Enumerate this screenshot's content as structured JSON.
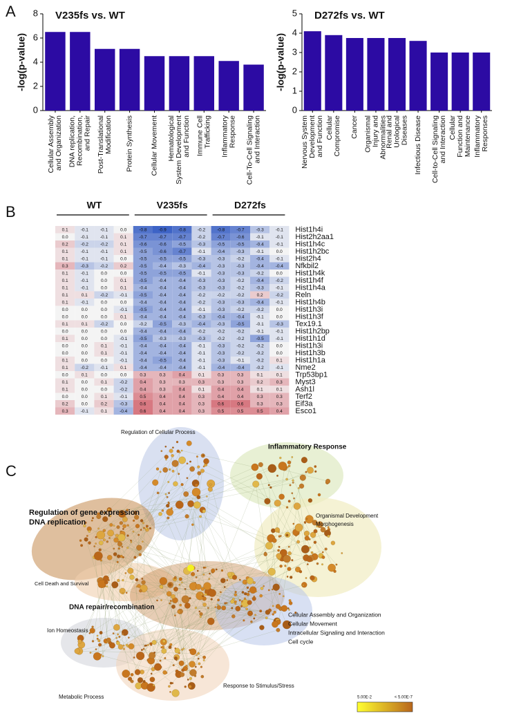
{
  "panel_labels": [
    "A",
    "B",
    "C"
  ],
  "chart_data": [
    {
      "type": "bar",
      "title": "V235fs vs. WT",
      "ylabel": "-log(p-value)",
      "color": "#2c0ba3",
      "categories": [
        [
          "Cellular Assembly",
          "and Organization"
        ],
        [
          "DNA replication,",
          "Recombination,",
          "and Repair"
        ],
        [
          "Post-Translational",
          "Modification"
        ],
        [
          "Protein Synthesis"
        ],
        [
          "Cellular Movement"
        ],
        [
          "Hematological",
          "System Development",
          "and Function"
        ],
        [
          "Immune Cell",
          "Trafficking"
        ],
        [
          "Inflammatory",
          "Response"
        ],
        [
          "Cell-To-Cell Signaling",
          "and Interaction"
        ]
      ],
      "values": [
        6.5,
        6.5,
        5.1,
        5.1,
        4.5,
        4.5,
        4.5,
        4.1,
        3.8
      ],
      "ylim": [
        0,
        8
      ],
      "yticks": [
        0,
        2,
        4,
        6,
        8
      ]
    },
    {
      "type": "bar",
      "title": "D272fs vs. WT",
      "ylabel": "-log(p-value)",
      "color": "#2c0ba3",
      "categories": [
        [
          "Nervous System",
          "Development",
          "and Function"
        ],
        [
          "Cellular",
          "Compromise"
        ],
        [
          "Cancer"
        ],
        [
          "Organismal",
          "Injury and",
          "Abnormalities"
        ],
        [
          "Renal and",
          "Urological",
          "Diseases"
        ],
        [
          "Infectious Disease"
        ],
        [
          "Cell-to-Cell Signaling",
          "and Interaction"
        ],
        [
          "Cellular",
          "Function and",
          "Maintenance"
        ],
        [
          "Inflammatory",
          "Responses"
        ]
      ],
      "values": [
        4.1,
        3.9,
        3.75,
        3.75,
        3.75,
        3.6,
        3.0,
        3.0,
        3.0
      ],
      "ylim": [
        0,
        5
      ],
      "yticks": [
        0,
        1,
        2,
        3,
        4,
        5
      ]
    },
    {
      "type": "heatmap",
      "groups": [
        "WT",
        "V235fs",
        "D272fs"
      ],
      "colors": [
        "#3d63c6",
        "#f4f4f4",
        "#c83a48"
      ],
      "rows": [
        "Hist1h4i",
        "Hist2h2aa1",
        "Hist1h4c",
        "Hist1h2bc",
        "Hist2h4",
        "Nfkbil2",
        "Hist1h4k",
        "Hist1h4f",
        "Hist1h4a",
        "Reln",
        "Hist1h4b",
        "Hist1h3i",
        "Hist1h3f",
        "Tex19.1",
        "Hist1h2bp",
        "Hist1h1d",
        "Hist1h3i",
        "Hist1h3b",
        "Hist1h1a",
        "Nme2",
        "Trp53bp1",
        "Myst3",
        "Ash1l",
        "Terf2",
        "Eif3a",
        "Esco1"
      ],
      "values": [
        [
          0.1,
          -0.1,
          -0.1,
          0,
          -0.8,
          -0.9,
          -0.8,
          -0.2,
          -0.8,
          -0.7,
          -0.3,
          -0.1
        ],
        [
          0,
          -0.1,
          -0.1,
          0.1,
          -0.7,
          -0.7,
          -0.7,
          -0.2,
          -0.7,
          -0.6,
          -0.1,
          -0.1
        ],
        [
          0.2,
          -0.2,
          -0.2,
          0.1,
          -0.6,
          -0.6,
          -0.5,
          -0.3,
          -0.5,
          -0.5,
          -0.4,
          -0.1
        ],
        [
          0.1,
          -0.1,
          -0.1,
          0.1,
          -0.5,
          -0.6,
          -0.7,
          -0.1,
          -0.4,
          -0.3,
          -0.1,
          0
        ],
        [
          0.1,
          -0.1,
          -0.1,
          0,
          -0.5,
          -0.5,
          -0.5,
          -0.3,
          -0.3,
          -0.2,
          -0.4,
          -0.1
        ],
        [
          0.3,
          -0.3,
          -0.2,
          0.2,
          -0.5,
          -0.4,
          -0.3,
          -0.4,
          -0.3,
          -0.3,
          -0.4,
          -0.4
        ],
        [
          0.1,
          -0.1,
          0,
          0,
          -0.5,
          -0.5,
          -0.5,
          -0.1,
          -0.3,
          -0.3,
          -0.2,
          0
        ],
        [
          0.1,
          -0.1,
          0,
          0.1,
          -0.5,
          -0.4,
          -0.4,
          -0.3,
          -0.3,
          -0.2,
          -0.4,
          -0.2
        ],
        [
          0.1,
          -0.1,
          0,
          0.1,
          -0.4,
          -0.4,
          -0.4,
          -0.3,
          -0.3,
          -0.2,
          -0.3,
          -0.1
        ],
        [
          0.1,
          0.1,
          -0.2,
          -0.1,
          -0.5,
          -0.4,
          -0.4,
          -0.2,
          -0.2,
          -0.2,
          0.2,
          -0.2
        ],
        [
          0.1,
          -0.1,
          0,
          0,
          -0.4,
          -0.4,
          -0.4,
          -0.2,
          -0.3,
          -0.3,
          -0.4,
          -0.1
        ],
        [
          0,
          0,
          0,
          -0.1,
          -0.5,
          -0.4,
          -0.4,
          -0.1,
          -0.3,
          -0.2,
          -0.2,
          0
        ],
        [
          0,
          0,
          0,
          0.1,
          -0.4,
          -0.4,
          -0.4,
          -0.3,
          -0.4,
          -0.4,
          -0.1,
          0
        ],
        [
          0.1,
          0.1,
          -0.2,
          0,
          -0.2,
          -0.5,
          -0.3,
          -0.4,
          -0.3,
          -0.5,
          -0.1,
          -0.3
        ],
        [
          0,
          0,
          0,
          0,
          -0.4,
          -0.4,
          -0.4,
          -0.2,
          -0.2,
          -0.2,
          -0.1,
          -0.1
        ],
        [
          0.1,
          0,
          0,
          -0.1,
          -0.5,
          -0.3,
          -0.3,
          -0.3,
          -0.2,
          -0.2,
          -0.5,
          -0.1
        ],
        [
          0,
          0,
          0.1,
          -0.1,
          -0.4,
          -0.4,
          -0.4,
          -0.1,
          -0.3,
          -0.2,
          -0.2,
          0
        ],
        [
          0,
          0,
          0.1,
          -0.1,
          -0.4,
          -0.4,
          -0.4,
          -0.1,
          -0.3,
          -0.2,
          -0.2,
          0
        ],
        [
          0.1,
          0,
          0,
          -0.1,
          -0.4,
          -0.5,
          -0.4,
          -0.1,
          -0.3,
          -0.1,
          -0.2,
          0.1
        ],
        [
          0.1,
          -0.2,
          -0.1,
          0.1,
          -0.4,
          -0.4,
          -0.4,
          -0.1,
          -0.4,
          -0.4,
          -0.2,
          -0.1
        ],
        [
          0,
          0.1,
          0,
          0,
          0.3,
          0.3,
          0.4,
          0.1,
          0.3,
          0.3,
          0.1,
          0.1
        ],
        [
          0.1,
          0,
          0.1,
          -0.2,
          0.4,
          0.3,
          0.3,
          0.3,
          0.3,
          0.3,
          0.2,
          0.3
        ],
        [
          0.1,
          0,
          0,
          -0.2,
          0.4,
          0.3,
          0.4,
          0.1,
          0.4,
          0.4,
          0.1,
          0.1
        ],
        [
          0,
          0,
          0.1,
          -0.1,
          0.5,
          0.4,
          0.4,
          0.3,
          0.4,
          0.4,
          0.3,
          0.3
        ],
        [
          0.2,
          0,
          0.2,
          -0.3,
          0.6,
          0.4,
          0.4,
          0.3,
          0.6,
          0.6,
          0.3,
          0.3
        ],
        [
          0.3,
          -0.1,
          0.1,
          -0.4,
          0.6,
          0.4,
          0.4,
          0.3,
          0.5,
          0.5,
          0.5,
          0.4
        ]
      ],
      "value_labels": [
        [
          "0.1",
          "-0.1",
          "-0.1",
          "0.0",
          "-0.8",
          "-0.9",
          "-0.8",
          "-0.2",
          "-0.8",
          "-0.7",
          "-0.3",
          "-0.1"
        ],
        [
          "0.0",
          "-0.1",
          "-0.1",
          "0.1",
          "-0.7",
          "-0.7",
          "-0.7",
          "-0.2",
          "-0.7",
          "-0.6",
          "-0.1",
          "-0.1"
        ],
        [
          "0.2",
          "-0.2",
          "-0.2",
          "0.1",
          "-0.6",
          "-0.6",
          "-0.5",
          "-0.3",
          "-0.5",
          "-0.5",
          "-0.4",
          "-0.1"
        ],
        [
          "0.1",
          "-0.1",
          "-0.1",
          "0.1",
          "-0.5",
          "-0.6",
          "-0.7",
          "-0.1",
          "-0.4",
          "-0.3",
          "-0.1",
          "0.0"
        ],
        [
          "0.1",
          "-0.1",
          "-0.1",
          "0.0",
          "-0.5",
          "-0.5",
          "-0.5",
          "-0.3",
          "-0.3",
          "-0.2",
          "-0.4",
          "-0.1"
        ],
        [
          "0.3",
          "-0.3",
          "-0.2",
          "0.2",
          "-0.5",
          "-0.4",
          "-0.3",
          "-0.4",
          "-0.3",
          "-0.3",
          "-0.4",
          "-0.4"
        ],
        [
          "0.1",
          "-0.1",
          "0.0",
          "0.0",
          "-0.5",
          "-0.5",
          "-0.5",
          "-0.1",
          "-0.3",
          "-0.3",
          "-0.2",
          "0.0"
        ],
        [
          "0.1",
          "-0.1",
          "0.0",
          "0.1",
          "-0.5",
          "-0.4",
          "-0.4",
          "-0.3",
          "-0.3",
          "-0.2",
          "-0.4",
          "-0.2"
        ],
        [
          "0.1",
          "-0.1",
          "0.0",
          "0.1",
          "-0.4",
          "-0.4",
          "-0.4",
          "-0.3",
          "-0.3",
          "-0.2",
          "-0.3",
          "-0.1"
        ],
        [
          "0.1",
          "0.1",
          "-0.2",
          "-0.1",
          "-0.5",
          "-0.4",
          "-0.4",
          "-0.2",
          "-0.2",
          "-0.2",
          "0.2",
          "-0.2"
        ],
        [
          "0.1",
          "-0.1",
          "0.0",
          "0.0",
          "-0.4",
          "-0.4",
          "-0.4",
          "-0.2",
          "-0.3",
          "-0.3",
          "-0.4",
          "-0.1"
        ],
        [
          "0.0",
          "0.0",
          "0.0",
          "-0.1",
          "-0.5",
          "-0.4",
          "-0.4",
          "-0.1",
          "-0.3",
          "-0.2",
          "-0.2",
          "0.0"
        ],
        [
          "0.0",
          "0.0",
          "0.0",
          "0.1",
          "-0.4",
          "-0.4",
          "-0.4",
          "-0.3",
          "-0.4",
          "-0.4",
          "-0.1",
          "0.0"
        ],
        [
          "0.1",
          "0.1",
          "-0.2",
          "0.0",
          "-0.2",
          "-0.5",
          "-0.3",
          "-0.4",
          "-0.3",
          "-0.5",
          "-0.1",
          "-0.3"
        ],
        [
          "0.0",
          "0.0",
          "0.0",
          "0.0",
          "-0.4",
          "-0.4",
          "-0.4",
          "-0.2",
          "-0.2",
          "-0.2",
          "-0.1",
          "-0.1"
        ],
        [
          "0.1",
          "0.0",
          "0.0",
          "-0.1",
          "-0.5",
          "-0.3",
          "-0.3",
          "-0.3",
          "-0.2",
          "-0.2",
          "-0.5",
          "-0.1"
        ],
        [
          "0.0",
          "0.0",
          "0.1",
          "-0.1",
          "-0.4",
          "-0.4",
          "-0.4",
          "-0.1",
          "-0.3",
          "-0.2",
          "-0.2",
          "0.0"
        ],
        [
          "0.0",
          "0.0",
          "0.1",
          "-0.1",
          "-0.4",
          "-0.4",
          "-0.4",
          "-0.1",
          "-0.3",
          "-0.2",
          "-0.2",
          "0.0"
        ],
        [
          "0.1",
          "0.0",
          "0.0",
          "-0.1",
          "-0.4",
          "-0.5",
          "-0.4",
          "-0.1",
          "-0.3",
          "-0.1",
          "-0.2",
          "0.1"
        ],
        [
          "0.1",
          "-0.2",
          "-0.1",
          "0.1",
          "-0.4",
          "-0.4",
          "-0.4",
          "-0.1",
          "-0.4",
          "-0.4",
          "-0.2",
          "-0.1"
        ],
        [
          "0.0",
          "0.1",
          "0.0",
          "0.0",
          "0.3",
          "0.3",
          "0.4",
          "0.1",
          "0.3",
          "0.3",
          "0.1",
          "0.1"
        ],
        [
          "0.1",
          "0.0",
          "0.1",
          "-0.2",
          "0.4",
          "0.3",
          "0.3",
          "0.3",
          "0.3",
          "0.3",
          "0.2",
          "0.3"
        ],
        [
          "0.1",
          "0.0",
          "0.0",
          "-0.2",
          "0.4",
          "0.3",
          "0.4",
          "0.1",
          "0.4",
          "0.4",
          "0.1",
          "0.1"
        ],
        [
          "0.0",
          "0.0",
          "0.1",
          "-0.1",
          "0.5",
          "0.4",
          "0.4",
          "0.3",
          "0.4",
          "0.4",
          "0.3",
          "0.3"
        ],
        [
          "0.2",
          "0.0",
          "0.2",
          "-0.3",
          "0.6",
          "0.4",
          "0.4",
          "0.3",
          "0.6",
          "0.6",
          "0.3",
          "0.3"
        ],
        [
          "0.3",
          "-0.1",
          "0.1",
          "-0.4",
          "0.6",
          "0.4",
          "0.4",
          "0.3",
          "0.5",
          "0.5",
          "0.5",
          "0.4"
        ]
      ]
    }
  ],
  "network": {
    "labels": [
      "Regulation of Cellular Process",
      "Inflammatory Response",
      "Regulation of gene expression",
      "DNA replication",
      "Organismal Development",
      "Morphogenesis",
      "Cell Death and Survival",
      "DNA repair/recombination",
      "Cellular Assembly and Organization",
      "Cellular Movement",
      "Intracellular Signaling and Interaction",
      "Cell cycle",
      "Ion Homeostasis",
      "Response to Stimulus/Stress",
      "Metabolic Process"
    ],
    "legend": {
      "low_label": "5.00E-2",
      "high_label": "< 5.00E-7",
      "colors": [
        "#ffff30",
        "#b8661c"
      ]
    }
  }
}
